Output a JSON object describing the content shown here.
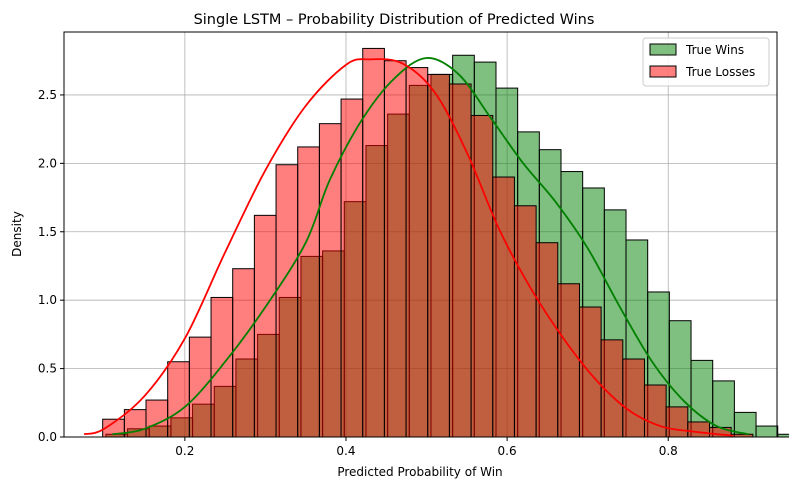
{
  "chart_data": {
    "type": "histogram",
    "title": "Single LSTM – Probability Distribution of Predicted Wins",
    "xlabel": "Predicted Probability of Win",
    "ylabel": "Density",
    "xlim": [
      0.05,
      0.935
    ],
    "ylim": [
      0,
      2.96
    ],
    "x_ticks": [
      0.2,
      0.4,
      0.6,
      0.8
    ],
    "x_tick_labels": [
      "0.2",
      "0.4",
      "0.6",
      "0.8"
    ],
    "y_ticks": [
      0.0,
      0.5,
      1.0,
      1.5,
      2.0,
      2.5
    ],
    "y_tick_labels": [
      "0.0",
      "0.5",
      "1.0",
      "1.5",
      "2.0",
      "2.5"
    ],
    "grid": true,
    "legend_position": "top-right",
    "series": [
      {
        "name": "True Wins",
        "color": "#008000",
        "bins_start": 0.102,
        "bin_width": 0.0269,
        "values": [
          0.02,
          0.06,
          0.08,
          0.14,
          0.24,
          0.37,
          0.57,
          0.75,
          1.02,
          1.32,
          1.36,
          1.72,
          2.13,
          2.36,
          2.57,
          2.65,
          2.79,
          2.74,
          2.55,
          2.23,
          2.1,
          1.94,
          1.82,
          1.66,
          1.44,
          1.06,
          0.85,
          0.56,
          0.41,
          0.18,
          0.08,
          0.02
        ],
        "kde_x": [
          0.11,
          0.15,
          0.2,
          0.25,
          0.3,
          0.35,
          0.38,
          0.42,
          0.46,
          0.5,
          0.54,
          0.58,
          0.62,
          0.66,
          0.7,
          0.74,
          0.78,
          0.82,
          0.86,
          0.9
        ],
        "kde_y": [
          0.02,
          0.06,
          0.22,
          0.55,
          0.95,
          1.42,
          1.88,
          2.32,
          2.62,
          2.77,
          2.65,
          2.33,
          2.0,
          1.72,
          1.38,
          0.95,
          0.55,
          0.26,
          0.08,
          0.02
        ]
      },
      {
        "name": "True Losses",
        "color": "#ff0000",
        "bins_start": 0.098,
        "bin_width": 0.0269,
        "values": [
          0.13,
          0.2,
          0.27,
          0.55,
          0.73,
          1.02,
          1.23,
          1.62,
          1.99,
          2.12,
          2.29,
          2.47,
          2.84,
          2.75,
          2.7,
          2.65,
          2.58,
          2.35,
          1.9,
          1.69,
          1.42,
          1.12,
          0.95,
          0.71,
          0.57,
          0.38,
          0.22,
          0.11,
          0.07,
          0.02
        ],
        "kde_x": [
          0.075,
          0.1,
          0.15,
          0.2,
          0.25,
          0.3,
          0.35,
          0.4,
          0.43,
          0.47,
          0.51,
          0.55,
          0.59,
          0.63,
          0.67,
          0.71,
          0.75,
          0.79,
          0.83,
          0.88
        ],
        "kde_y": [
          0.02,
          0.06,
          0.3,
          0.72,
          1.35,
          1.95,
          2.42,
          2.72,
          2.76,
          2.73,
          2.52,
          2.08,
          1.52,
          1.08,
          0.72,
          0.42,
          0.2,
          0.08,
          0.04,
          0.01
        ]
      }
    ]
  }
}
